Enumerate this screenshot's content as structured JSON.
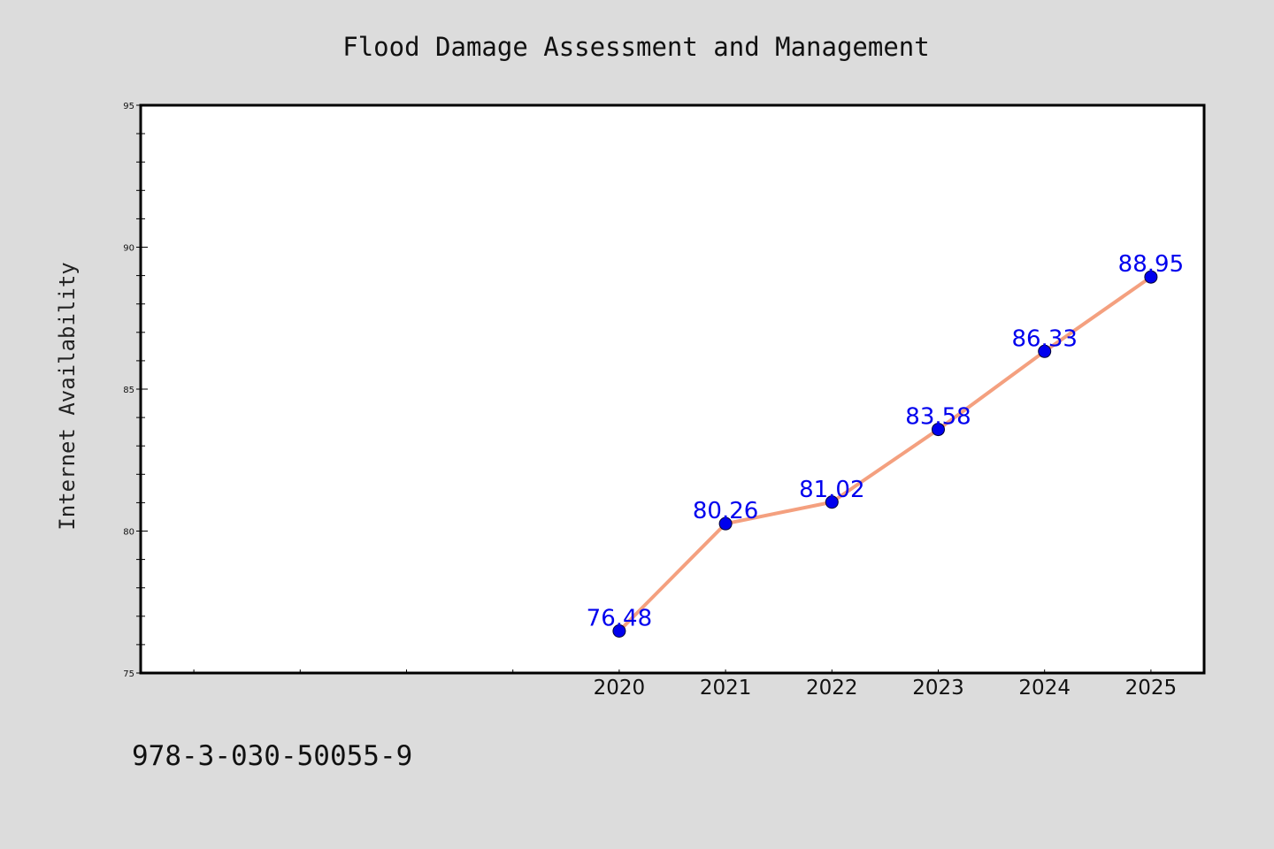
{
  "chart_data": {
    "type": "line",
    "title": "Flood Damage Assessment and Management",
    "xlabel": "",
    "ylabel": "Internet Availability",
    "x_range": [
      2015.5,
      2025.5
    ],
    "ylim": [
      75,
      95
    ],
    "y_ticks": [
      "75",
      "80",
      "85",
      "90",
      "95"
    ],
    "categories": [
      "2020",
      "2021",
      "2022",
      "2023",
      "2024",
      "2025"
    ],
    "series": [
      {
        "x": [
          2020,
          2021,
          2022,
          2023,
          2024,
          2025
        ],
        "values": [
          76.48,
          80.26,
          81.02,
          83.58,
          86.33,
          88.95
        ],
        "labels": [
          "76.48",
          "80.26",
          "81.02",
          "83.58",
          "86.33",
          "88.95"
        ],
        "line_color": "#f4a07f",
        "marker_color": "#0000ee",
        "label_color": "#0000ee"
      }
    ],
    "grid": false,
    "legend": "none"
  },
  "footer": {
    "isbn": "978-3-030-50055-9"
  },
  "colors": {
    "background": "#dcdcdc",
    "plot_background": "#ffffff"
  }
}
